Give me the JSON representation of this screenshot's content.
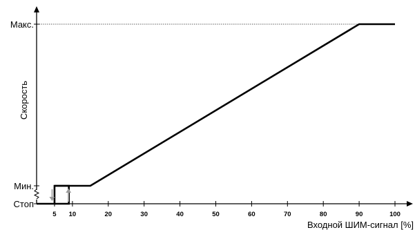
{
  "chart_data": {
    "type": "line",
    "title": "",
    "xlabel": "Входной ШИМ-сигнал [%]",
    "ylabel": "Скорость",
    "xlim": [
      0,
      100
    ],
    "x_ticks": [
      5,
      10,
      20,
      30,
      40,
      50,
      60,
      70,
      80,
      90,
      100
    ],
    "y_levels": [
      {
        "key": "stop",
        "label": "Стоп"
      },
      {
        "key": "min",
        "label": "Мин."
      },
      {
        "key": "max",
        "label": "Макс."
      }
    ],
    "series": [
      {
        "x": [
          0,
          5,
          5,
          15,
          90,
          100
        ],
        "y": [
          "stop",
          "stop",
          "min",
          "min",
          "max",
          "max"
        ]
      }
    ],
    "hysteresis": {
      "turn_off_at": 5,
      "turn_on_at": 9,
      "off_direction": "down",
      "on_direction": "up"
    },
    "axis_break": "y between stop and min",
    "guide_line": "dotted line at max level",
    "grid": false,
    "legend": "none"
  }
}
